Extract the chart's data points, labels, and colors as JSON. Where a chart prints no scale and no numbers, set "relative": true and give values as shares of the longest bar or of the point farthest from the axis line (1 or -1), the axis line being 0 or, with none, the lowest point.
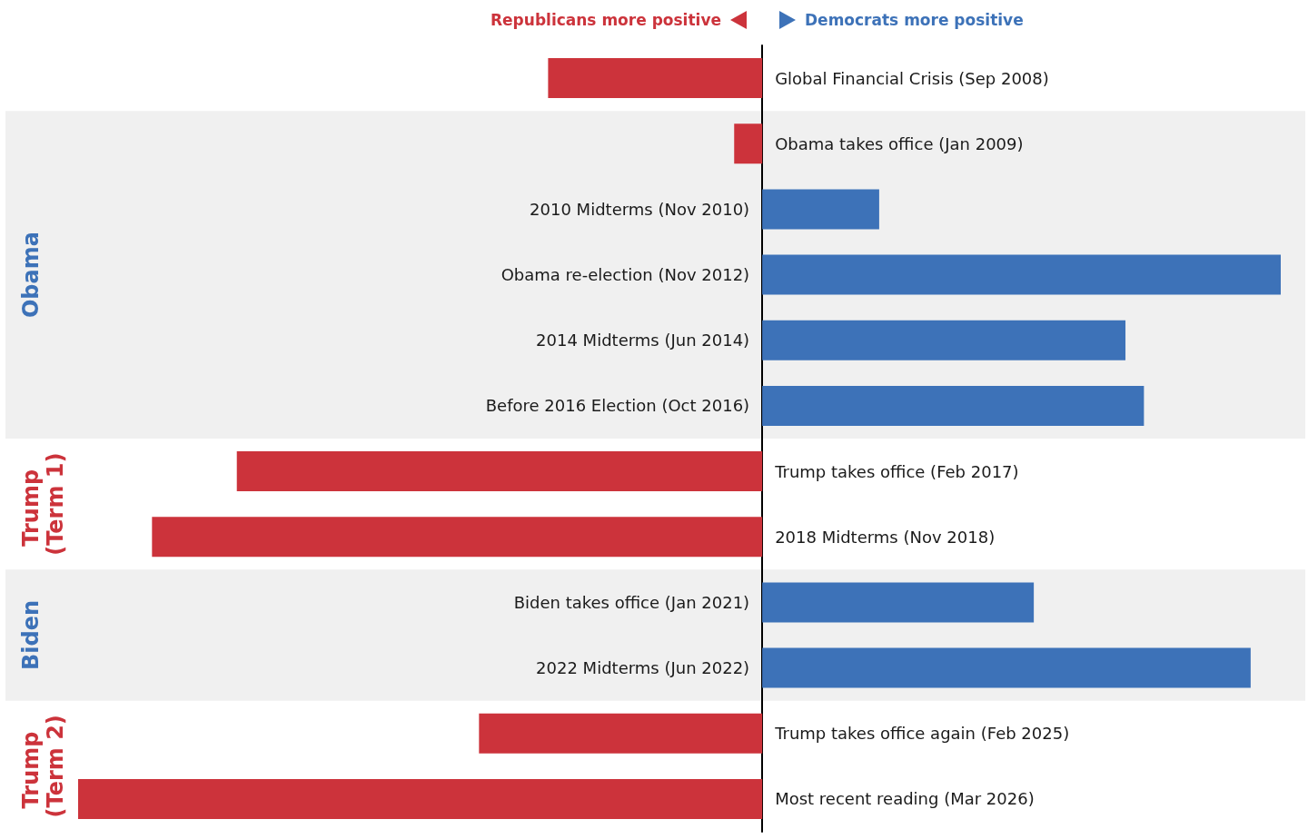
{
  "chart_data": {
    "type": "bar",
    "orientation": "horizontal",
    "relative": true,
    "categories": [
      "Global Financial Crisis (Sep 2008)",
      "Obama takes office (Jan 2009)",
      "2010 Midterms (Nov 2010)",
      "Obama re-election (Nov 2012)",
      "2014 Midterms (Jun 2014)",
      "Before 2016 Election (Oct 2016)",
      "Trump takes office (Feb 2017)",
      "2018 Midterms (Nov 2018)",
      "Biden takes office (Jan 2021)",
      "2022 Midterms (Jun 2022)",
      "Trump takes office again (Feb 2025)",
      "Most recent reading (Mar 2026)"
    ],
    "values": [
      -0.313,
      -0.041,
      0.171,
      0.758,
      0.531,
      0.558,
      -0.768,
      -0.892,
      0.397,
      0.714,
      -0.414,
      -1
    ],
    "colors": [
      "#cc333b",
      "#cc333b",
      "#3d72b8",
      "#3d72b8",
      "#3d72b8",
      "#3d72b8",
      "#cc333b",
      "#cc333b",
      "#3d72b8",
      "#3d72b8",
      "#cc333b",
      "#cc333b"
    ],
    "annotations": [
      "Republicans more positive",
      "Democrats more positive",
      "Trump (Term 1)",
      "Trump (Term 2)"
    ],
    "bands": [
      {
        "axis": "y",
        "from": "Obama takes office (Jan 2009)",
        "to": "Before 2016 Election (Oct 2016)",
        "label": "Obama",
        "color": "#f0f0f0"
      },
      {
        "axis": "y",
        "from": "Biden takes office (Jan 2021)",
        "to": "2022 Midterms (Jun 2022)",
        "label": "Biden",
        "color": "#f0f0f0"
      }
    ]
  }
}
